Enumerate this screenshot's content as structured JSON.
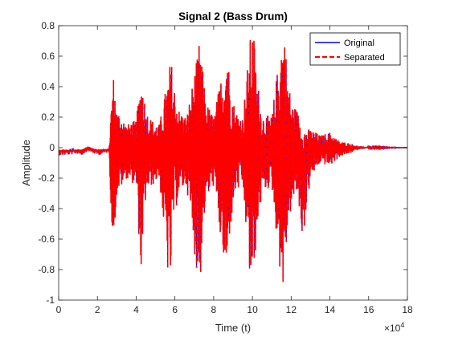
{
  "chart_data": {
    "type": "line",
    "title": "Signal 2 (Bass Drum)",
    "xlabel": "Time (t)",
    "ylabel": "Amplitude",
    "x_exponent_base": "×10",
    "x_exponent_power": "4",
    "xlim": [
      0,
      18
    ],
    "ylim": [
      -1,
      0.8
    ],
    "x_ticks": [
      "0",
      "2",
      "4",
      "6",
      "8",
      "10",
      "12",
      "14",
      "16",
      "18"
    ],
    "y_ticks": [
      "-1",
      "-0.8",
      "-0.6",
      "-0.4",
      "-0.2",
      "0",
      "0.2",
      "0.4",
      "0.6",
      "0.8"
    ],
    "grid": false,
    "legend_position": "top-right",
    "series": [
      {
        "name": "Original",
        "color": "#0000ff",
        "style": "solid"
      },
      {
        "name": "Separated",
        "color": "#ff0000",
        "style": "dashed"
      }
    ],
    "envelope": {
      "x": [
        0,
        0.3,
        1.0,
        1.2,
        1.5,
        2.0,
        2.6,
        2.8,
        2.85,
        3.0,
        3.3,
        3.5,
        4.0,
        4.3,
        4.4,
        4.5,
        4.8,
        5.2,
        5.7,
        5.8,
        5.9,
        6.2,
        6.6,
        7.2,
        7.3,
        7.4,
        7.6,
        8.0,
        8.6,
        8.7,
        8.8,
        9.1,
        9.5,
        9.9,
        10.05,
        10.2,
        10.5,
        11.0,
        11.5,
        11.65,
        11.8,
        12.0,
        12.3,
        12.6,
        13.0,
        13.5,
        14.0,
        14.5,
        15.0,
        15.5,
        16.0,
        17.0,
        18.0
      ],
      "upper": [
        -0.02,
        -0.02,
        -0.02,
        -0.02,
        0.01,
        -0.02,
        -0.01,
        0.48,
        0.46,
        0.25,
        0.2,
        0.15,
        0.18,
        0.5,
        0.38,
        0.25,
        0.18,
        0.15,
        0.5,
        0.6,
        0.45,
        0.25,
        0.2,
        0.62,
        0.73,
        0.55,
        0.3,
        0.2,
        0.6,
        0.73,
        0.5,
        0.25,
        0.2,
        0.72,
        0.78,
        0.5,
        0.22,
        0.2,
        0.72,
        0.77,
        0.5,
        0.3,
        0.25,
        0.12,
        0.12,
        0.08,
        0.1,
        0.04,
        0.03,
        0.01,
        0.005,
        0.002,
        0.0
      ],
      "lower": [
        -0.05,
        -0.05,
        -0.04,
        -0.05,
        -0.02,
        -0.05,
        -0.03,
        -0.69,
        -0.6,
        -0.3,
        -0.25,
        -0.2,
        -0.25,
        -0.92,
        -0.55,
        -0.3,
        -0.25,
        -0.2,
        -0.92,
        -0.85,
        -0.5,
        -0.3,
        -0.25,
        -0.88,
        -0.94,
        -0.6,
        -0.35,
        -0.25,
        -0.85,
        -0.9,
        -0.6,
        -0.3,
        -0.25,
        -0.92,
        -0.94,
        -0.6,
        -0.3,
        -0.25,
        -0.9,
        -0.94,
        -0.55,
        -0.4,
        -0.3,
        -0.6,
        -0.2,
        -0.1,
        -0.12,
        -0.06,
        -0.04,
        -0.01,
        -0.005,
        -0.002,
        0.0
      ]
    }
  }
}
